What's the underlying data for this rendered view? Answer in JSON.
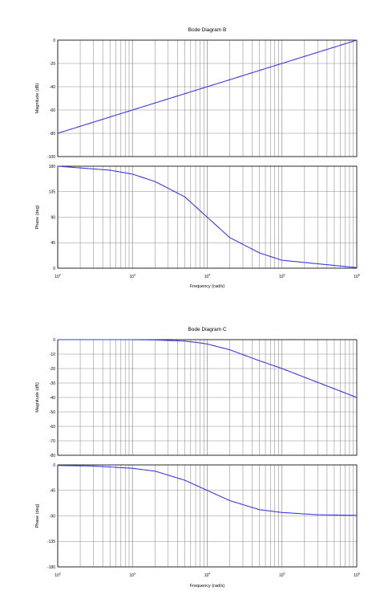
{
  "chart_data": [
    {
      "type": "line",
      "title": "Bode Diagram B",
      "xlabel": "Frequency  (rad/s)",
      "x_scale": "log",
      "xlim": [
        100,
        1000000
      ],
      "grid": true,
      "x_tick_labels": [
        {
          "base": "10",
          "exp": "2"
        },
        {
          "base": "10",
          "exp": "3"
        },
        {
          "base": "10",
          "exp": "4"
        },
        {
          "base": "10",
          "exp": "5"
        },
        {
          "base": "10",
          "exp": "6"
        }
      ],
      "magnitude": {
        "ylabel": "Magnitude (dB)",
        "ylim": [
          -100,
          0
        ],
        "y_ticks": [
          0,
          -20,
          -40,
          -60,
          -80,
          -100
        ],
        "color": "#3b3bdc",
        "x": [
          100,
          200,
          500,
          1000,
          2000,
          5000,
          10000,
          20000,
          50000,
          100000,
          1000000
        ],
        "y": [
          -80,
          -74,
          -66,
          -60,
          -54,
          -46,
          -40,
          -34,
          -26,
          -20,
          0
        ]
      },
      "phase": {
        "ylabel": "Phase (deg)",
        "ylim": [
          0,
          180
        ],
        "y_ticks": [
          180,
          135,
          90,
          45,
          0
        ],
        "color": "#3b3bdc",
        "x": [
          100,
          200,
          500,
          1000,
          2000,
          5000,
          10000,
          20000,
          50000,
          100000,
          1000000
        ],
        "y": [
          180,
          177,
          173,
          166,
          153,
          126,
          90,
          54,
          27,
          14,
          1
        ]
      }
    },
    {
      "type": "line",
      "title": "Bode Diagram C",
      "xlabel": "Frequency  (rad/s)",
      "x_scale": "log",
      "xlim": [
        100,
        1000000
      ],
      "grid": true,
      "x_tick_labels": [
        {
          "base": "10",
          "exp": "2"
        },
        {
          "base": "10",
          "exp": "3"
        },
        {
          "base": "10",
          "exp": "4"
        },
        {
          "base": "10",
          "exp": "5"
        },
        {
          "base": "10",
          "exp": "6"
        }
      ],
      "magnitude": {
        "ylabel": "Magnitude (dB)",
        "ylim": [
          -80,
          0
        ],
        "y_ticks": [
          0,
          -10,
          -20,
          -30,
          -40,
          -50,
          -60,
          -70,
          -80
        ],
        "color": "#3b3bdc",
        "x": [
          100,
          1000,
          2000,
          5000,
          7000,
          10000,
          20000,
          50000,
          100000,
          1000000
        ],
        "y": [
          0,
          0,
          -0.2,
          -1,
          -1.8,
          -3,
          -7,
          -14.6,
          -20,
          -40
        ]
      },
      "phase": {
        "ylabel": "Phase (deg)",
        "ylim": [
          -180,
          0
        ],
        "y_ticks": [
          0,
          -45,
          -90,
          -135,
          -180
        ],
        "color": "#3b3bdc",
        "x": [
          100,
          300,
          1000,
          2000,
          5000,
          10000,
          20000,
          50000,
          100000,
          300000,
          1000000
        ],
        "y": [
          -1,
          -2,
          -6,
          -11,
          -27,
          -45,
          -63,
          -79,
          -84,
          -88,
          -89
        ]
      }
    }
  ]
}
